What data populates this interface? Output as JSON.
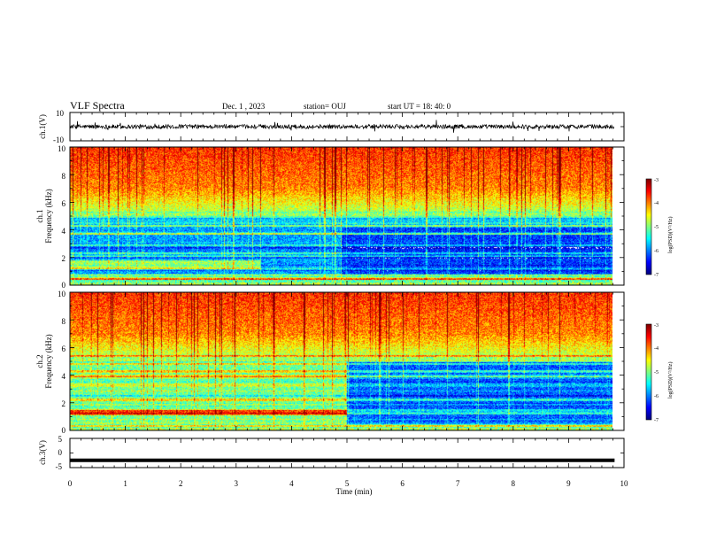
{
  "header": {
    "title": "VLF Spectra",
    "date": "Dec. 1 , 2023",
    "station": "station= OUJ",
    "start": "start UT =  18: 40: 0"
  },
  "chart_data": [
    {
      "type": "line",
      "panel": "ch1-waveform",
      "ylabel": "ch.1(V)",
      "ylim": [
        -10,
        10
      ],
      "ytick_labels": [
        "10",
        "-10"
      ],
      "baseline_value": 0,
      "noise_amplitude": 1.5
    },
    {
      "type": "heatmap",
      "panel": "ch1-spectrogram",
      "ylabel_line1": "ch.1",
      "ylabel_line2": "Frequency (kHz)",
      "ylim": [
        0,
        10
      ],
      "ytick_labels": [
        "0",
        "2",
        "4",
        "6",
        "8",
        "10"
      ],
      "colorbar": {
        "label": "log(PSD)(V²/Hz)",
        "range": [
          -7,
          -3
        ],
        "tick_labels": [
          "-3",
          "-4",
          "-5",
          "-6",
          "-7"
        ]
      }
    },
    {
      "type": "heatmap",
      "panel": "ch2-spectrogram",
      "ylabel_line1": "ch.2",
      "ylabel_line2": "Frequency (kHz)",
      "ylim": [
        0,
        10
      ],
      "ytick_labels": [
        "0",
        "2",
        "4",
        "6",
        "8",
        "10"
      ],
      "colorbar": {
        "label": "log(PSD)(V²/Hz)",
        "range": [
          -7,
          -3
        ],
        "tick_labels": [
          "-3",
          "-4",
          "-5",
          "-6",
          "-7"
        ]
      }
    },
    {
      "type": "line",
      "panel": "ch3-waveform",
      "ylabel": "ch.3(V)",
      "ylim": [
        -5,
        5
      ],
      "ytick_labels": [
        "5",
        "0",
        "-5"
      ],
      "baseline_value": -2.5
    }
  ],
  "x_axis": {
    "label": "Time (min)",
    "range": [
      0,
      10
    ],
    "data_end": 9.83,
    "tick_labels": [
      "0",
      "1",
      "2",
      "3",
      "4",
      "5",
      "6",
      "7",
      "8",
      "9",
      "10"
    ]
  },
  "colors": {
    "low": "#0000a0",
    "mid": "#00e040",
    "high": "#ff0000"
  }
}
